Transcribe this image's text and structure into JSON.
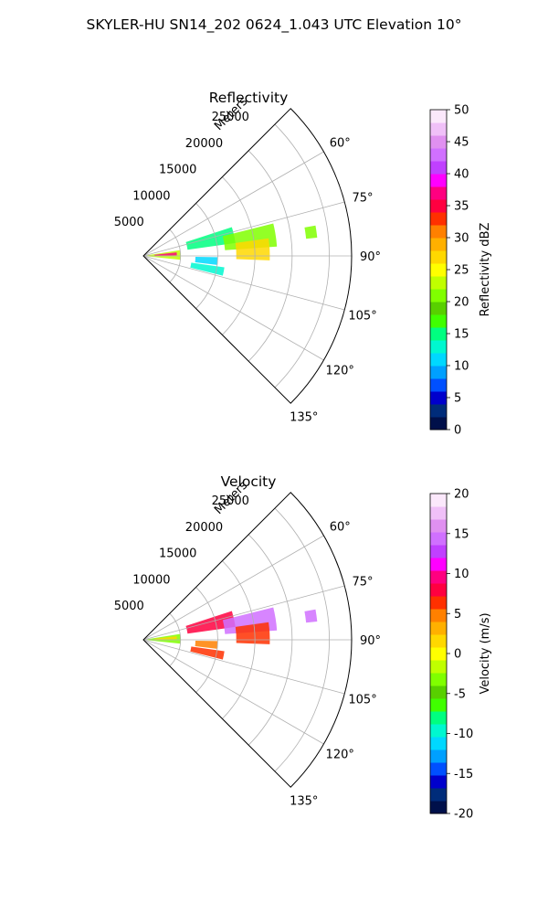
{
  "figure": {
    "suptitle": "SKYLER-HU  SN14_202  0624_1.043 UTC Elevation 10°"
  },
  "chart_data": [
    {
      "type": "polar-sector",
      "title": "Reflectivity",
      "range_label": "Meters",
      "theta_range_deg": [
        45,
        135
      ],
      "r_max": 28000,
      "range_ticks": [
        5000,
        10000,
        15000,
        20000,
        25000
      ],
      "range_tick_labels": [
        "5000",
        "10000",
        "15000",
        "20000",
        "25000"
      ],
      "angle_ticks": [
        60,
        75,
        90,
        105,
        120,
        135
      ],
      "angle_tick_labels": [
        "60°",
        "75°",
        "90°",
        "105°",
        "120°",
        "135°"
      ],
      "grid": true,
      "colorbar": {
        "label": "Reflectivity dBZ",
        "min": 0,
        "max": 50,
        "ticks": [
          0,
          5,
          10,
          15,
          20,
          25,
          30,
          35,
          40,
          45,
          50
        ],
        "tick_labels": [
          "0",
          "5",
          "10",
          "15",
          "20",
          "25",
          "30",
          "35",
          "40",
          "45",
          "50"
        ],
        "colormap": [
          "#00104a",
          "#002c7a",
          "#0000cc",
          "#0050ff",
          "#00a0ff",
          "#00d8ff",
          "#00f8d0",
          "#00ff80",
          "#40ff00",
          "#58d000",
          "#80ff00",
          "#c0ff00",
          "#ffff00",
          "#ffd800",
          "#ffb000",
          "#ff8000",
          "#ff3000",
          "#ff0040",
          "#ff0080",
          "#ff00ff",
          "#c040ff",
          "#d070ff",
          "#e090f0",
          "#f0c0f8",
          "#fbe8fb"
        ]
      },
      "echo_regions": [
        {
          "r": [
            500,
            5000
          ],
          "theta": [
            81,
            96
          ],
          "level": 22
        },
        {
          "r": [
            1500,
            4500
          ],
          "theta": [
            84,
            89
          ],
          "level": 36
        },
        {
          "r": [
            6000,
            12500
          ],
          "theta": [
            72,
            82
          ],
          "level": 14
        },
        {
          "r": [
            11000,
            18000
          ],
          "theta": [
            76,
            86
          ],
          "level": 20
        },
        {
          "r": [
            12500,
            17000
          ],
          "theta": [
            82,
            92
          ],
          "level": 27
        },
        {
          "r": [
            7000,
            10000
          ],
          "theta": [
            91,
            97
          ],
          "level": 10
        },
        {
          "r": [
            6500,
            11000
          ],
          "theta": [
            98,
            104
          ],
          "level": 12
        },
        {
          "r": [
            22000,
            23500
          ],
          "theta": [
            80,
            84
          ],
          "level": 20
        }
      ]
    },
    {
      "type": "polar-sector",
      "title": "Velocity",
      "range_label": "Meters",
      "theta_range_deg": [
        45,
        135
      ],
      "r_max": 28000,
      "range_ticks": [
        5000,
        10000,
        15000,
        20000,
        25000
      ],
      "range_tick_labels": [
        "5000",
        "10000",
        "15000",
        "20000",
        "25000"
      ],
      "angle_ticks": [
        60,
        75,
        90,
        105,
        120,
        135
      ],
      "angle_tick_labels": [
        "60°",
        "75°",
        "90°",
        "105°",
        "120°",
        "135°"
      ],
      "grid": true,
      "colorbar": {
        "label": "Velocity (m/s)",
        "min": -20,
        "max": 20,
        "ticks": [
          -20,
          -15,
          -10,
          -5,
          0,
          5,
          10,
          15,
          20
        ],
        "tick_labels": [
          "-20",
          "-15",
          "-10",
          "-5",
          "0",
          "5",
          "10",
          "15",
          "20"
        ],
        "colormap": [
          "#00104a",
          "#002c7a",
          "#0000cc",
          "#0050ff",
          "#00a0ff",
          "#00d8ff",
          "#00f8d0",
          "#00ff80",
          "#40ff00",
          "#58d000",
          "#80ff00",
          "#c0ff00",
          "#ffff00",
          "#ffd800",
          "#ffb000",
          "#ff8000",
          "#ff3000",
          "#ff0040",
          "#ff0080",
          "#ff00ff",
          "#c040ff",
          "#d070ff",
          "#e090f0",
          "#f0c0f8",
          "#fbe8fb"
        ]
      },
      "echo_regions": [
        {
          "r": [
            500,
            5000
          ],
          "theta": [
            81,
            96
          ],
          "level": -3
        },
        {
          "r": [
            1500,
            4500
          ],
          "theta": [
            84,
            89
          ],
          "level": 2
        },
        {
          "r": [
            6000,
            12500
          ],
          "theta": [
            72,
            82
          ],
          "level": 8
        },
        {
          "r": [
            11000,
            18000
          ],
          "theta": [
            76,
            86
          ],
          "level": 14
        },
        {
          "r": [
            12500,
            17000
          ],
          "theta": [
            82,
            92
          ],
          "level": 7
        },
        {
          "r": [
            7000,
            10000
          ],
          "theta": [
            91,
            97
          ],
          "level": 5
        },
        {
          "r": [
            6500,
            11000
          ],
          "theta": [
            98,
            104
          ],
          "level": 6
        },
        {
          "r": [
            22000,
            23500
          ],
          "theta": [
            80,
            84
          ],
          "level": 15
        }
      ]
    }
  ]
}
